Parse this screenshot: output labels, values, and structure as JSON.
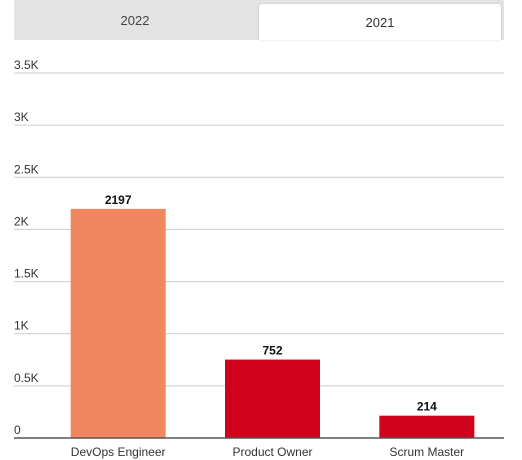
{
  "tabs": [
    {
      "label": "2022",
      "active": false
    },
    {
      "label": "2021",
      "active": true
    }
  ],
  "chart_data": {
    "type": "bar",
    "categories": [
      "DevOps Engineer",
      "Product Owner",
      "Scrum Master"
    ],
    "values": [
      2197,
      752,
      214
    ],
    "bar_colors": [
      "#f0875f",
      "#d0021b",
      "#d0021b"
    ],
    "ylim": [
      0,
      3500
    ],
    "yticks": [
      0,
      500,
      1000,
      1500,
      2000,
      2500,
      3000,
      3500
    ],
    "ytick_labels": [
      "0",
      "0.5K",
      "1K",
      "1.5K",
      "2K",
      "2.5K",
      "3K",
      "3.5K"
    ],
    "grid": true,
    "title": "",
    "xlabel": "",
    "ylabel": ""
  }
}
